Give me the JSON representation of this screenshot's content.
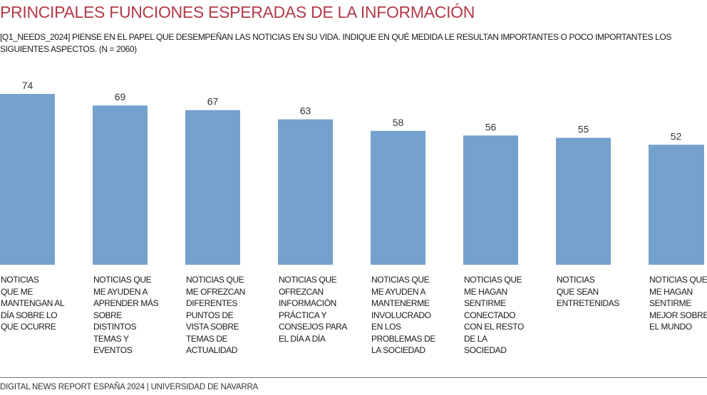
{
  "title": "PRINCIPALES FUNCIONES ESPERADAS DE LA INFORMACIÓN",
  "subtitle": "[Q1_NEEDS_2024] PIENSE EN EL PAPEL QUE DESEMPEÑAN LAS NOTICIAS EN SU VIDA.  INDIQUE EN QUÉ MEDIDA LE RESULTAN IMPORTANTES O POCO IMPORTANTES LOS SIGUIENTES ASPECTOS. (N = 2060)",
  "footer": "DIGITAL NEWS REPORT ESPAÑA 2024 | UNIVERSIDAD DE NAVARRA",
  "colors": {
    "bar": "#75a1cf",
    "title": "#b23a48"
  },
  "chart_data": {
    "type": "bar",
    "categories": [
      "NOTICIAS\nQUE ME\nMANTENGAN AL\nDÍA SOBRE LO\nQUE OCURRE",
      "NOTICIAS QUE\nME AYUDEN A\nAPRENDER MÁS\nSOBRE\nDISTINTOS\nTEMAS Y\nEVENTOS",
      "NOTICIAS QUE\nME OFREZCAN\nDIFERENTES\nPUNTOS DE\nVISTA SOBRE\nTEMAS DE\nACTUALIDAD",
      "NOTICIAS QUE\nOFREZCAN\nINFORMACIÓN\nPRÁCTICA Y\nCONSEJOS PARA\nEL DÍA A DÍA",
      "NOTICIAS QUE\nME AYUDEN A\nMANTENERME\nINVOLUCRADO\nEN LOS\nPROBLEMAS DE\nLA SOCIEDAD",
      "NOTICIAS QUE\nME HAGAN\nSENTIRME\nCONECTADO\nCON EL RESTO\nDE LA\nSOCIEDAD",
      "NOTICIAS\nQUE SEAN\nENTRETENIDAS",
      "NOTICIAS QUE\nME HAGAN\nSENTIRME\nMEJOR SOBRE\nEL MUNDO"
    ],
    "values": [
      74,
      69,
      67,
      63,
      58,
      56,
      55,
      52
    ],
    "ylim": [
      0,
      74
    ],
    "grid": false,
    "data_labels": true
  }
}
